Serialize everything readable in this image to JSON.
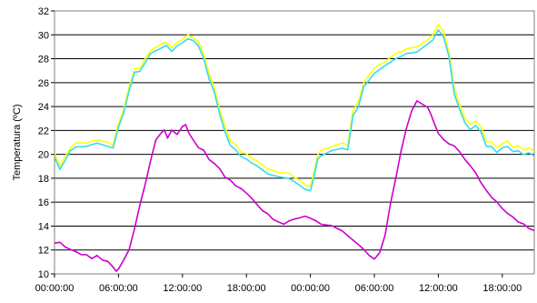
{
  "chart_data": {
    "type": "line",
    "title": "",
    "xlabel": "",
    "ylabel": "Temperatura (ºC)",
    "ylim": [
      10,
      32
    ],
    "yticks": [
      10,
      12,
      14,
      16,
      18,
      20,
      22,
      24,
      26,
      28,
      30,
      32
    ],
    "xlim": [
      0,
      45
    ],
    "xtick_values": [
      0,
      6,
      12,
      18,
      24,
      30,
      36,
      42
    ],
    "xtick_labels": [
      "00:00:00",
      "06:00:00",
      "12:00:00",
      "18:00:00",
      "00:00:00",
      "06:00:00",
      "12:00:00",
      "18:00:00"
    ],
    "grid": "horizontal",
    "legend": "none",
    "series": [
      {
        "color": "#ffff00",
        "points": [
          [
            0,
            20.1
          ],
          [
            0.5,
            19.0
          ],
          [
            1,
            19.8
          ],
          [
            1.5,
            20.6
          ],
          [
            2,
            20.9
          ],
          [
            3,
            21.0
          ],
          [
            4,
            21.2
          ],
          [
            5,
            21.0
          ],
          [
            5.5,
            20.8
          ],
          [
            6,
            22.6
          ],
          [
            6.5,
            23.8
          ],
          [
            7,
            25.6
          ],
          [
            7.5,
            27.2
          ],
          [
            8,
            27.2
          ],
          [
            8.5,
            28.0
          ],
          [
            9,
            28.7
          ],
          [
            10,
            29.2
          ],
          [
            10.5,
            29.4
          ],
          [
            11,
            28.9
          ],
          [
            11.5,
            29.4
          ],
          [
            12,
            29.6
          ],
          [
            12.5,
            30.0
          ],
          [
            13,
            29.8
          ],
          [
            13.5,
            29.4
          ],
          [
            14,
            28.4
          ],
          [
            14.5,
            26.7
          ],
          [
            15,
            25.6
          ],
          [
            15.5,
            23.7
          ],
          [
            16,
            22.3
          ],
          [
            16.5,
            21.1
          ],
          [
            17,
            20.8
          ],
          [
            17.5,
            20.2
          ],
          [
            18,
            20.0
          ],
          [
            18.5,
            19.7
          ],
          [
            19,
            19.4
          ],
          [
            20,
            18.8
          ],
          [
            21,
            18.5
          ],
          [
            22,
            18.4
          ],
          [
            22.5,
            18.1
          ],
          [
            23,
            17.8
          ],
          [
            23.5,
            17.5
          ],
          [
            24,
            17.3
          ],
          [
            24.3,
            18.4
          ],
          [
            24.7,
            20.0
          ],
          [
            25,
            20.3
          ],
          [
            26,
            20.7
          ],
          [
            27,
            20.9
          ],
          [
            27.5,
            20.8
          ],
          [
            28,
            23.6
          ],
          [
            28.5,
            24.4
          ],
          [
            29,
            26.0
          ],
          [
            30,
            27.2
          ],
          [
            31,
            27.8
          ],
          [
            32,
            28.4
          ],
          [
            32.5,
            28.6
          ],
          [
            33,
            28.8
          ],
          [
            34,
            29.0
          ],
          [
            35,
            29.6
          ],
          [
            35.5,
            30.0
          ],
          [
            36,
            30.9
          ],
          [
            36.5,
            30.2
          ],
          [
            37,
            28.6
          ],
          [
            37.5,
            25.4
          ],
          [
            38,
            24.2
          ],
          [
            38.5,
            23.0
          ],
          [
            39,
            22.5
          ],
          [
            39.5,
            22.8
          ],
          [
            40,
            22.3
          ],
          [
            40.5,
            21.1
          ],
          [
            41,
            21.0
          ],
          [
            41.5,
            20.6
          ],
          [
            42,
            20.9
          ],
          [
            42.5,
            21.1
          ],
          [
            43,
            20.6
          ],
          [
            43.5,
            20.7
          ],
          [
            44,
            20.4
          ],
          [
            44.5,
            20.5
          ],
          [
            45,
            20.3
          ]
        ]
      },
      {
        "color": "#33ddee",
        "points": [
          [
            0,
            19.8
          ],
          [
            0.5,
            18.7
          ],
          [
            1,
            19.5
          ],
          [
            1.5,
            20.3
          ],
          [
            2,
            20.6
          ],
          [
            3,
            20.7
          ],
          [
            4,
            20.9
          ],
          [
            5,
            20.7
          ],
          [
            5.5,
            20.5
          ],
          [
            6,
            22.3
          ],
          [
            6.5,
            23.5
          ],
          [
            7,
            25.3
          ],
          [
            7.5,
            26.9
          ],
          [
            8,
            26.9
          ],
          [
            8.5,
            27.7
          ],
          [
            9,
            28.4
          ],
          [
            10,
            28.9
          ],
          [
            10.5,
            29.1
          ],
          [
            11,
            28.6
          ],
          [
            11.5,
            29.1
          ],
          [
            12,
            29.3
          ],
          [
            12.5,
            29.7
          ],
          [
            13,
            29.5
          ],
          [
            13.5,
            29.1
          ],
          [
            14,
            28.0
          ],
          [
            14.5,
            26.3
          ],
          [
            15,
            25.2
          ],
          [
            15.5,
            23.3
          ],
          [
            16,
            21.9
          ],
          [
            16.5,
            20.7
          ],
          [
            17,
            20.4
          ],
          [
            17.5,
            19.8
          ],
          [
            18,
            19.6
          ],
          [
            18.5,
            19.3
          ],
          [
            19,
            19.0
          ],
          [
            20,
            18.4
          ],
          [
            21,
            18.1
          ],
          [
            22,
            18.0
          ],
          [
            22.5,
            17.7
          ],
          [
            23,
            17.4
          ],
          [
            23.5,
            17.1
          ],
          [
            24,
            16.9
          ],
          [
            24.3,
            18.0
          ],
          [
            24.7,
            19.6
          ],
          [
            25,
            19.9
          ],
          [
            26,
            20.3
          ],
          [
            27,
            20.5
          ],
          [
            27.5,
            20.4
          ],
          [
            28,
            23.2
          ],
          [
            28.5,
            24.0
          ],
          [
            29,
            25.6
          ],
          [
            30,
            26.8
          ],
          [
            31,
            27.4
          ],
          [
            32,
            28.0
          ],
          [
            32.5,
            28.2
          ],
          [
            33,
            28.4
          ],
          [
            34,
            28.6
          ],
          [
            35,
            29.2
          ],
          [
            35.5,
            29.6
          ],
          [
            36,
            30.4
          ],
          [
            36.5,
            29.8
          ],
          [
            37,
            28.2
          ],
          [
            37.5,
            25.0
          ],
          [
            38,
            23.8
          ],
          [
            38.5,
            22.6
          ],
          [
            39,
            22.1
          ],
          [
            39.5,
            22.4
          ],
          [
            40,
            21.9
          ],
          [
            40.5,
            20.7
          ],
          [
            41,
            20.6
          ],
          [
            41.5,
            20.2
          ],
          [
            42,
            20.5
          ],
          [
            42.5,
            20.7
          ],
          [
            43,
            20.2
          ],
          [
            43.5,
            20.3
          ],
          [
            44,
            20.0
          ],
          [
            44.5,
            20.1
          ],
          [
            45,
            19.9
          ]
        ]
      },
      {
        "color": "#cc00cc",
        "points": [
          [
            0,
            12.6
          ],
          [
            0.5,
            12.6
          ],
          [
            1,
            12.3
          ],
          [
            1.5,
            12.0
          ],
          [
            2,
            11.9
          ],
          [
            2.5,
            11.6
          ],
          [
            3,
            11.6
          ],
          [
            3.5,
            11.3
          ],
          [
            4,
            11.5
          ],
          [
            4.5,
            11.2
          ],
          [
            5,
            11.0
          ],
          [
            5.5,
            10.6
          ],
          [
            5.8,
            10.2
          ],
          [
            6,
            10.4
          ],
          [
            6.5,
            11.2
          ],
          [
            7,
            12.0
          ],
          [
            7.5,
            13.8
          ],
          [
            8,
            15.7
          ],
          [
            8.5,
            17.5
          ],
          [
            9,
            19.4
          ],
          [
            9.5,
            21.2
          ],
          [
            10,
            21.8
          ],
          [
            10.3,
            22.0
          ],
          [
            10.6,
            21.4
          ],
          [
            11,
            22.0
          ],
          [
            11.5,
            21.7
          ],
          [
            12,
            22.3
          ],
          [
            12.3,
            22.5
          ],
          [
            12.6,
            21.8
          ],
          [
            13,
            21.2
          ],
          [
            13.5,
            20.6
          ],
          [
            14,
            20.3
          ],
          [
            14.5,
            19.6
          ],
          [
            15,
            19.2
          ],
          [
            15.5,
            18.8
          ],
          [
            16,
            18.1
          ],
          [
            16.5,
            17.8
          ],
          [
            17,
            17.4
          ],
          [
            17.5,
            17.1
          ],
          [
            18,
            16.8
          ],
          [
            18.5,
            16.3
          ],
          [
            19,
            15.8
          ],
          [
            19.5,
            15.3
          ],
          [
            20,
            15.0
          ],
          [
            20.5,
            14.6
          ],
          [
            21,
            14.3
          ],
          [
            21.5,
            14.2
          ],
          [
            22,
            14.4
          ],
          [
            22.5,
            14.6
          ],
          [
            23,
            14.7
          ],
          [
            23.5,
            14.8
          ],
          [
            24,
            14.7
          ],
          [
            24.5,
            14.4
          ],
          [
            25,
            14.2
          ],
          [
            26,
            14.0
          ],
          [
            27,
            13.6
          ],
          [
            27.5,
            13.2
          ],
          [
            28,
            12.8
          ],
          [
            28.5,
            12.5
          ],
          [
            29,
            12.0
          ],
          [
            29.5,
            11.6
          ],
          [
            30,
            11.2
          ],
          [
            30.5,
            11.8
          ],
          [
            31,
            13.2
          ],
          [
            31.5,
            15.8
          ],
          [
            32,
            18.0
          ],
          [
            32.5,
            20.2
          ],
          [
            33,
            22.2
          ],
          [
            33.5,
            23.6
          ],
          [
            34,
            24.5
          ],
          [
            34.5,
            24.2
          ],
          [
            35,
            23.9
          ],
          [
            35.3,
            23.4
          ],
          [
            35.6,
            22.6
          ],
          [
            36,
            21.8
          ],
          [
            36.5,
            21.2
          ],
          [
            37,
            20.9
          ],
          [
            37.5,
            20.7
          ],
          [
            38,
            20.2
          ],
          [
            38.5,
            19.6
          ],
          [
            39,
            19.0
          ],
          [
            39.5,
            18.5
          ],
          [
            40,
            17.6
          ],
          [
            40.5,
            17.0
          ],
          [
            41,
            16.4
          ],
          [
            41.5,
            16.0
          ],
          [
            42,
            15.5
          ],
          [
            42.5,
            15.0
          ],
          [
            43,
            14.8
          ],
          [
            43.5,
            14.3
          ],
          [
            44,
            14.2
          ],
          [
            44.5,
            13.8
          ],
          [
            45,
            13.6
          ]
        ]
      }
    ]
  }
}
